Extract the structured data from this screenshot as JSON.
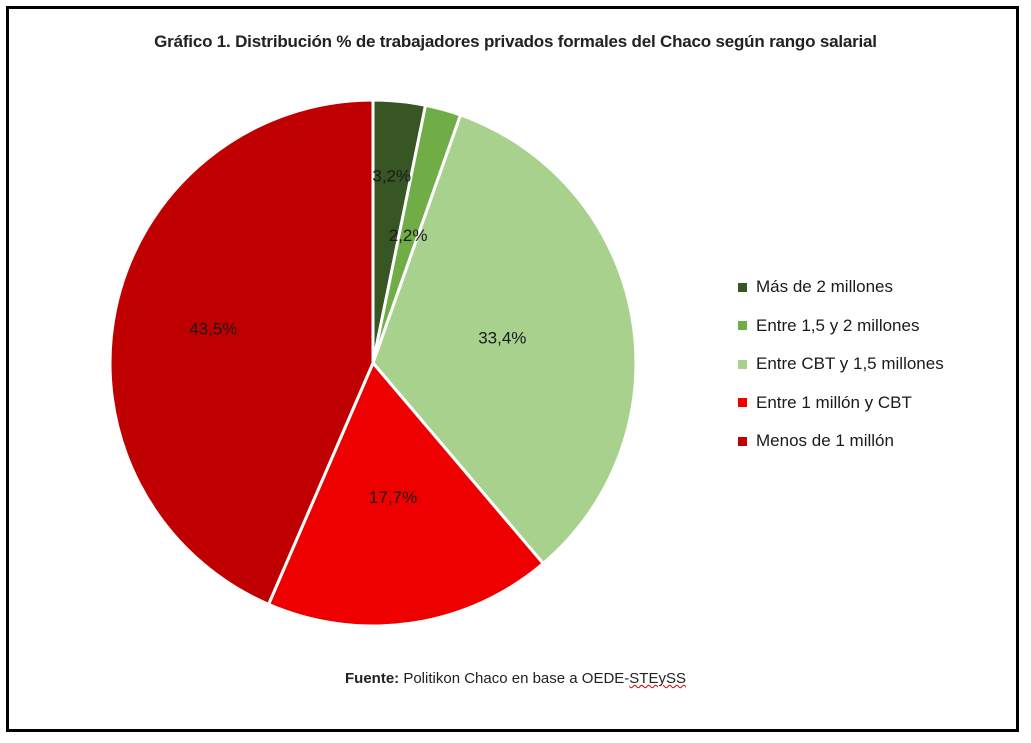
{
  "chart_data": {
    "type": "pie",
    "title": "Gráfico 1. Distribución % de trabajadores privados formales del Chaco según rango salarial",
    "slices": [
      {
        "label": "Más de 2 millones",
        "value": 3.2,
        "display": "3,2%",
        "color": "#375623"
      },
      {
        "label": "Entre 1,5 y 2 millones",
        "value": 2.2,
        "display": "2,2%",
        "color": "#70ad47"
      },
      {
        "label": "Entre CBT y 1,5 millones",
        "value": 33.4,
        "display": "33,4%",
        "color": "#a9d18e"
      },
      {
        "label": "Entre 1 millón y CBT",
        "value": 17.7,
        "display": "17,7%",
        "color": "#ee0000"
      },
      {
        "label": "Menos de 1 millón",
        "value": 43.5,
        "display": "43,5%",
        "color": "#c00000"
      }
    ],
    "legend_placement": "right"
  },
  "source": {
    "prefix": "Fuente:",
    "text": " Politikon Chaco en base a OEDE-",
    "underlined": "STEySS"
  }
}
